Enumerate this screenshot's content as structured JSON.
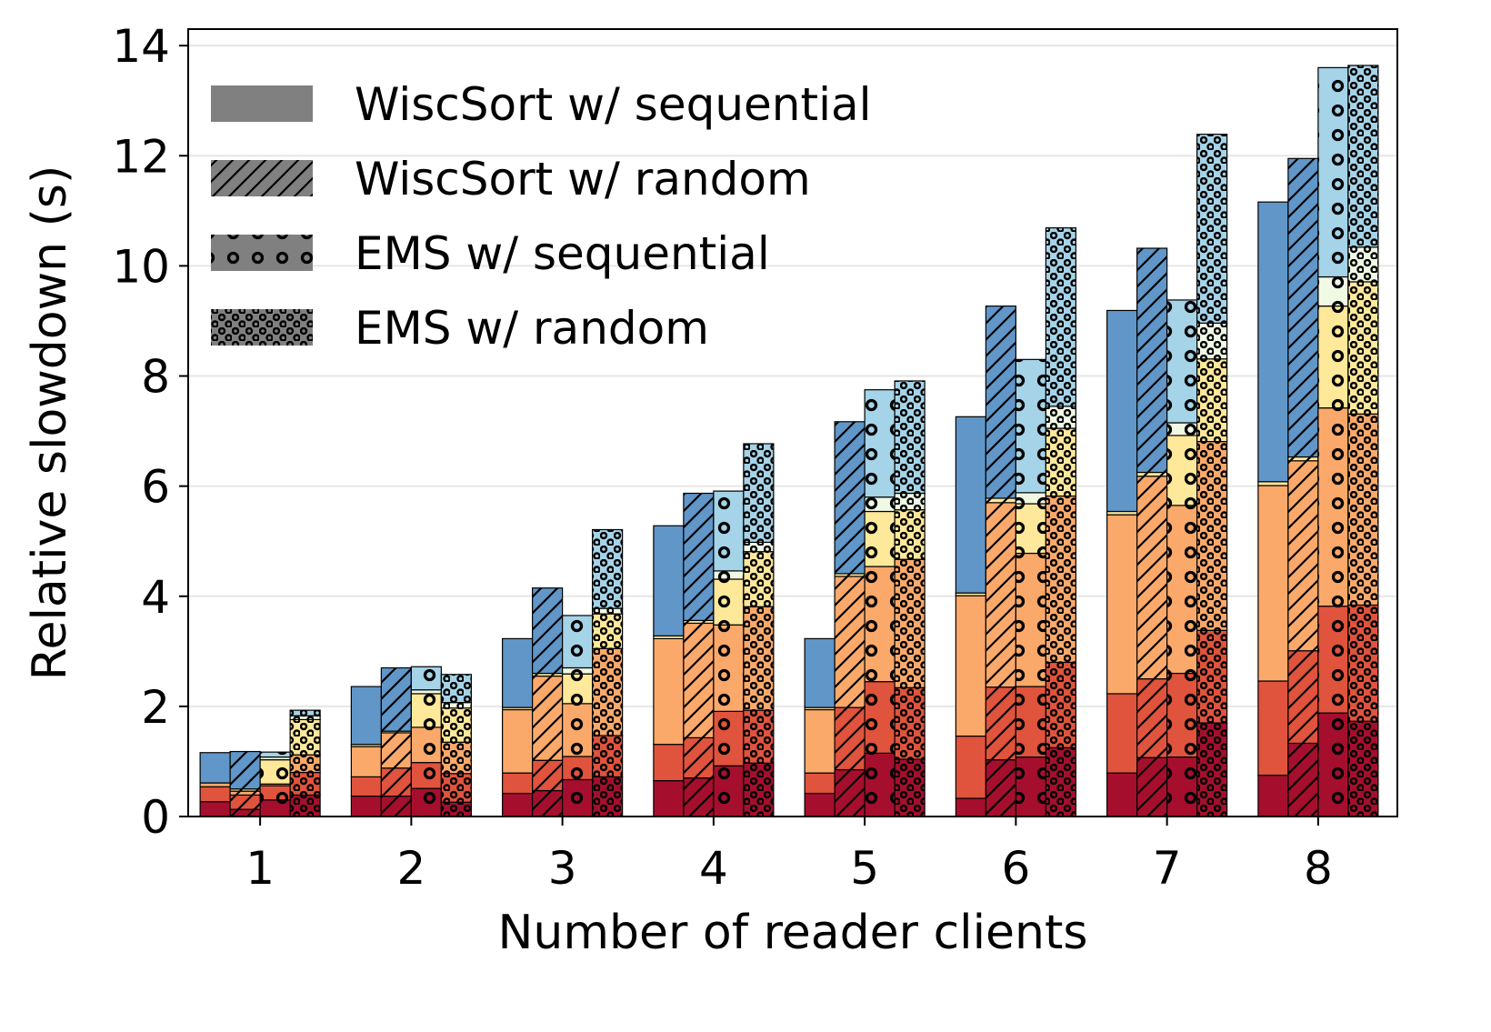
{
  "chart_data": {
    "type": "bar",
    "stacked": true,
    "grouped": true,
    "xlabel": "Number of reader clients",
    "ylabel": "Relative slowdown (s)",
    "ylim": [
      0,
      14.3
    ],
    "yticks": [
      0,
      2,
      4,
      6,
      8,
      10,
      12,
      14
    ],
    "categories": [
      "1",
      "2",
      "3",
      "4",
      "5",
      "6",
      "7",
      "8"
    ],
    "grid": "horizontal",
    "legend_position": "top-left",
    "segment_colors": [
      "#a50f2d",
      "#e0533d",
      "#fba96a",
      "#fee89a",
      "#f0f9e4",
      "#a5d3e8",
      "#6096c8"
    ],
    "series": [
      {
        "name": "WiscSort w/ sequential",
        "pattern": "solid",
        "segments": [
          [
            0.27,
            0.27,
            0.07,
            0,
            0,
            0,
            0.55
          ],
          [
            0.37,
            0.35,
            0.55,
            0.04,
            0,
            0,
            1.05
          ],
          [
            0.42,
            0.37,
            1.15,
            0.04,
            0,
            0,
            1.25
          ],
          [
            0.65,
            0.66,
            1.92,
            0.05,
            0,
            0,
            2.0
          ],
          [
            0.42,
            0.37,
            1.15,
            0.04,
            0,
            0,
            1.25
          ],
          [
            0.33,
            1.13,
            2.55,
            0.05,
            0,
            0,
            3.2
          ],
          [
            0.79,
            1.44,
            3.25,
            0.06,
            0,
            0,
            3.65
          ],
          [
            0.75,
            1.71,
            3.55,
            0.07,
            0,
            0,
            5.08
          ]
        ]
      },
      {
        "name": "WiscSort w/ random",
        "pattern": "hatch",
        "segments": [
          [
            0.13,
            0.26,
            0.07,
            0.04,
            0,
            0,
            0.68
          ],
          [
            0.37,
            0.51,
            0.64,
            0.03,
            0,
            0,
            1.15
          ],
          [
            0.47,
            0.55,
            1.53,
            0.05,
            0,
            0,
            1.55
          ],
          [
            0.7,
            0.73,
            2.08,
            0.05,
            0,
            0,
            2.31
          ],
          [
            0.85,
            1.13,
            2.38,
            0.05,
            0,
            0,
            2.76
          ],
          [
            1.03,
            1.32,
            3.35,
            0.08,
            0,
            0,
            3.49
          ],
          [
            1.07,
            1.43,
            3.68,
            0.07,
            0,
            0,
            4.07
          ],
          [
            1.33,
            1.68,
            3.45,
            0.07,
            0,
            0,
            5.42
          ]
        ]
      },
      {
        "name": "EMS w/ sequential",
        "pattern": "circles",
        "segments": [
          [
            0.3,
            0.26,
            0.03,
            0.44,
            0.05,
            0.09,
            0
          ],
          [
            0.51,
            0.47,
            0.64,
            0.61,
            0.07,
            0.42,
            0
          ],
          [
            0.67,
            0.42,
            0.96,
            0.54,
            0.11,
            0.95,
            0
          ],
          [
            0.92,
            0.99,
            1.57,
            0.83,
            0.15,
            1.45,
            0
          ],
          [
            1.15,
            1.3,
            2.09,
            1.0,
            0.26,
            1.95,
            0
          ],
          [
            1.08,
            1.28,
            2.42,
            0.9,
            0.2,
            2.42,
            0
          ],
          [
            1.08,
            1.52,
            3.05,
            1.27,
            0.23,
            2.23,
            0
          ],
          [
            1.88,
            1.94,
            3.6,
            1.85,
            0.53,
            3.8,
            0
          ]
        ]
      },
      {
        "name": "EMS w/ random",
        "pattern": "dots",
        "segments": [
          [
            0.39,
            0.41,
            0.32,
            0.64,
            0.07,
            0.1,
            0
          ],
          [
            0.26,
            0.52,
            0.57,
            0.62,
            0.1,
            0.51,
            0
          ],
          [
            0.72,
            0.75,
            1.58,
            0.63,
            0.1,
            1.43,
            0
          ],
          [
            0.97,
            0.96,
            1.88,
            1.0,
            0.17,
            1.79,
            0
          ],
          [
            1.04,
            1.3,
            2.33,
            0.9,
            0.3,
            2.04,
            0
          ],
          [
            1.25,
            1.55,
            3.02,
            1.23,
            0.4,
            3.24,
            0
          ],
          [
            1.7,
            1.68,
            3.43,
            1.5,
            0.65,
            3.43,
            0
          ],
          [
            1.73,
            2.11,
            3.47,
            2.4,
            0.63,
            3.3,
            0
          ]
        ]
      }
    ]
  }
}
